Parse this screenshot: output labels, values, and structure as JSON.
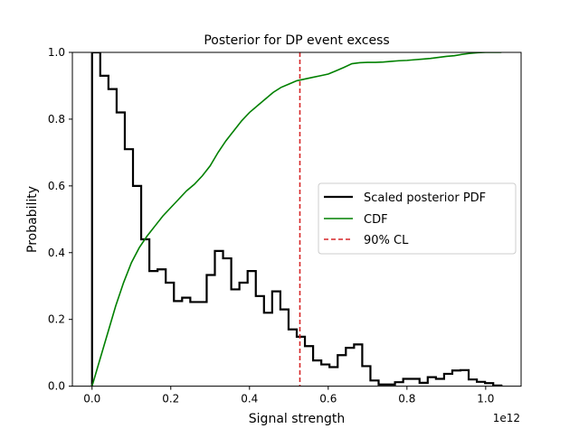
{
  "chart_data": {
    "type": "line",
    "title": "Posterior for DP event excess",
    "xlabel": "Signal strength",
    "ylabel": "Probability",
    "x_offset_label": "1e12",
    "xlim": [
      -0.05,
      1.09
    ],
    "ylim": [
      0,
      1
    ],
    "x_scale": 1000000000000.0,
    "x_ticks": [
      0.0,
      0.2,
      0.4,
      0.6,
      0.8,
      1.0
    ],
    "x_tick_labels": [
      "0.0",
      "0.2",
      "0.4",
      "0.6",
      "0.8",
      "1.0"
    ],
    "y_ticks": [
      0.0,
      0.2,
      0.4,
      0.6,
      0.8,
      1.0
    ],
    "y_tick_labels": [
      "0.0",
      "0.2",
      "0.4",
      "0.6",
      "0.8",
      "1.0"
    ],
    "grid": false,
    "legend_position": "center-right",
    "series": [
      {
        "name": "Scaled posterior PDF",
        "style": "steps",
        "color": "#000000",
        "bin_edges": [
          0.0,
          0.0208,
          0.0416,
          0.0624,
          0.0832,
          0.104,
          0.1248,
          0.1456,
          0.1664,
          0.1872,
          0.208,
          0.2288,
          0.2496,
          0.2704,
          0.2912,
          0.312,
          0.3328,
          0.3536,
          0.3744,
          0.3952,
          0.416,
          0.4368,
          0.4576,
          0.4784,
          0.4992,
          0.52,
          0.5408,
          0.5616,
          0.5824,
          0.6032,
          0.624,
          0.6448,
          0.6656,
          0.6864,
          0.7072,
          0.728,
          0.7488,
          0.7696,
          0.7904,
          0.8112,
          0.832,
          0.8528,
          0.8736,
          0.8944,
          0.9152,
          0.936,
          0.9568,
          0.9776,
          0.9984,
          1.0192,
          1.04
        ],
        "values": [
          1.0,
          0.93,
          0.89,
          0.82,
          0.71,
          0.6,
          0.44,
          0.345,
          0.35,
          0.31,
          0.255,
          0.265,
          0.252,
          0.252,
          0.333,
          0.405,
          0.383,
          0.29,
          0.31,
          0.345,
          0.27,
          0.22,
          0.284,
          0.23,
          0.17,
          0.148,
          0.12,
          0.077,
          0.065,
          0.057,
          0.093,
          0.115,
          0.125,
          0.06,
          0.017,
          0.005,
          0.005,
          0.012,
          0.022,
          0.022,
          0.01,
          0.027,
          0.022,
          0.037,
          0.047,
          0.048,
          0.02,
          0.013,
          0.009,
          0.002
        ]
      },
      {
        "name": "CDF",
        "style": "line",
        "color": "#008000",
        "x": [
          0.0,
          0.02,
          0.04,
          0.06,
          0.08,
          0.1,
          0.12,
          0.14,
          0.16,
          0.18,
          0.2,
          0.22,
          0.24,
          0.26,
          0.28,
          0.3,
          0.32,
          0.34,
          0.36,
          0.38,
          0.4,
          0.42,
          0.44,
          0.46,
          0.48,
          0.5,
          0.52,
          0.54,
          0.56,
          0.58,
          0.6,
          0.62,
          0.64,
          0.66,
          0.68,
          0.7,
          0.72,
          0.74,
          0.76,
          0.78,
          0.8,
          0.82,
          0.84,
          0.86,
          0.88,
          0.9,
          0.92,
          0.94,
          0.96,
          0.98,
          1.0,
          1.02,
          1.04
        ],
        "values": [
          0.0,
          0.08,
          0.16,
          0.24,
          0.31,
          0.37,
          0.415,
          0.45,
          0.48,
          0.51,
          0.535,
          0.56,
          0.585,
          0.605,
          0.63,
          0.66,
          0.7,
          0.735,
          0.765,
          0.795,
          0.82,
          0.84,
          0.86,
          0.88,
          0.895,
          0.905,
          0.915,
          0.92,
          0.925,
          0.93,
          0.935,
          0.945,
          0.955,
          0.966,
          0.969,
          0.97,
          0.97,
          0.971,
          0.973,
          0.975,
          0.976,
          0.978,
          0.98,
          0.982,
          0.985,
          0.988,
          0.99,
          0.994,
          0.997,
          0.999,
          1.0,
          1.0,
          1.0
        ]
      },
      {
        "name": "90% CL",
        "style": "vline-dashed",
        "color": "#d62728",
        "x": 0.528
      }
    ]
  }
}
